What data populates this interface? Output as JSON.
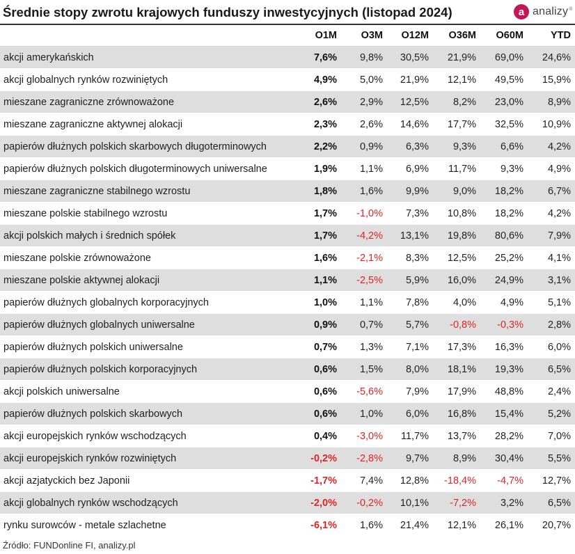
{
  "title": "Średnie stopy zwrotu krajowych funduszy inwestycyjnych (listopad 2024)",
  "logo": {
    "letter": "a",
    "text": "analizy",
    "mark": "®",
    "brand_color": "#c2185b"
  },
  "colors": {
    "negative": "#e02424",
    "shade": "#dedede"
  },
  "columns": [
    "",
    "O1M",
    "O3M",
    "O12M",
    "O36M",
    "O60M",
    "YTD"
  ],
  "rows": [
    {
      "name": "akcji amerykańskich",
      "values": [
        "7,6%",
        "9,8%",
        "30,5%",
        "21,9%",
        "69,0%",
        "24,6%"
      ]
    },
    {
      "name": "akcji globalnych rynków rozwiniętych",
      "values": [
        "4,9%",
        "5,0%",
        "21,9%",
        "12,1%",
        "49,5%",
        "15,9%"
      ]
    },
    {
      "name": "mieszane zagraniczne zrównoważone",
      "values": [
        "2,6%",
        "2,9%",
        "12,5%",
        "8,2%",
        "23,0%",
        "8,9%"
      ]
    },
    {
      "name": "mieszane zagraniczne aktywnej alokacji",
      "values": [
        "2,3%",
        "2,6%",
        "14,6%",
        "17,7%",
        "32,5%",
        "10,9%"
      ]
    },
    {
      "name": "papierów dłużnych polskich skarbowych długoterminowych",
      "values": [
        "2,2%",
        "0,9%",
        "6,3%",
        "9,3%",
        "6,6%",
        "4,2%"
      ]
    },
    {
      "name": "papierów dłużnych polskich długoterminowych uniwersalne",
      "values": [
        "1,9%",
        "1,1%",
        "6,9%",
        "11,7%",
        "9,3%",
        "4,9%"
      ]
    },
    {
      "name": "mieszane zagraniczne stabilnego wzrostu",
      "values": [
        "1,8%",
        "1,6%",
        "9,9%",
        "9,0%",
        "18,2%",
        "6,7%"
      ]
    },
    {
      "name": "mieszane polskie stabilnego wzrostu",
      "values": [
        "1,7%",
        "-1,0%",
        "7,3%",
        "10,8%",
        "18,2%",
        "4,2%"
      ]
    },
    {
      "name": "akcji polskich małych i średnich spółek",
      "values": [
        "1,7%",
        "-4,2%",
        "13,1%",
        "19,8%",
        "80,6%",
        "7,9%"
      ]
    },
    {
      "name": "mieszane polskie zrównoważone",
      "values": [
        "1,6%",
        "-2,1%",
        "8,3%",
        "12,5%",
        "25,2%",
        "4,1%"
      ]
    },
    {
      "name": "mieszane polskie aktywnej alokacji",
      "values": [
        "1,1%",
        "-2,5%",
        "5,9%",
        "16,0%",
        "24,9%",
        "3,1%"
      ]
    },
    {
      "name": "papierów dłużnych globalnych korporacyjnych",
      "values": [
        "1,0%",
        "1,1%",
        "7,8%",
        "4,0%",
        "4,9%",
        "5,1%"
      ]
    },
    {
      "name": "papierów dłużnych globalnych uniwersalne",
      "values": [
        "0,9%",
        "0,7%",
        "5,7%",
        "-0,8%",
        "-0,3%",
        "2,8%"
      ]
    },
    {
      "name": "papierów dłużnych polskich uniwersalne",
      "values": [
        "0,7%",
        "1,3%",
        "7,1%",
        "17,3%",
        "16,3%",
        "6,0%"
      ]
    },
    {
      "name": "papierów dłużnych polskich korporacyjnych",
      "values": [
        "0,6%",
        "1,5%",
        "8,0%",
        "18,1%",
        "19,3%",
        "6,5%"
      ]
    },
    {
      "name": "akcji polskich uniwersalne",
      "values": [
        "0,6%",
        "-5,6%",
        "7,9%",
        "17,9%",
        "48,8%",
        "2,4%"
      ]
    },
    {
      "name": "papierów dłużnych polskich skarbowych",
      "values": [
        "0,6%",
        "1,0%",
        "6,0%",
        "16,8%",
        "15,4%",
        "5,2%"
      ]
    },
    {
      "name": "akcji europejskich rynków wschodzących",
      "values": [
        "0,4%",
        "-3,0%",
        "11,7%",
        "13,7%",
        "28,2%",
        "7,0%"
      ]
    },
    {
      "name": "akcji europejskich rynków rozwiniętych",
      "values": [
        "-0,2%",
        "-2,8%",
        "9,7%",
        "8,9%",
        "30,4%",
        "5,5%"
      ]
    },
    {
      "name": "akcji azjatyckich bez Japonii",
      "values": [
        "-1,7%",
        "7,4%",
        "12,8%",
        "-18,4%",
        "-4,7%",
        "12,7%"
      ]
    },
    {
      "name": "akcji globalnych rynków wschodzących",
      "values": [
        "-2,0%",
        "-0,2%",
        "10,1%",
        "-7,2%",
        "3,2%",
        "6,5%"
      ]
    },
    {
      "name": "rynku surowców - metale szlachetne",
      "values": [
        "-6,1%",
        "1,6%",
        "21,4%",
        "12,1%",
        "26,1%",
        "20,7%"
      ]
    }
  ],
  "source": "Źródło: FUNDonline FI, analizy.pl"
}
